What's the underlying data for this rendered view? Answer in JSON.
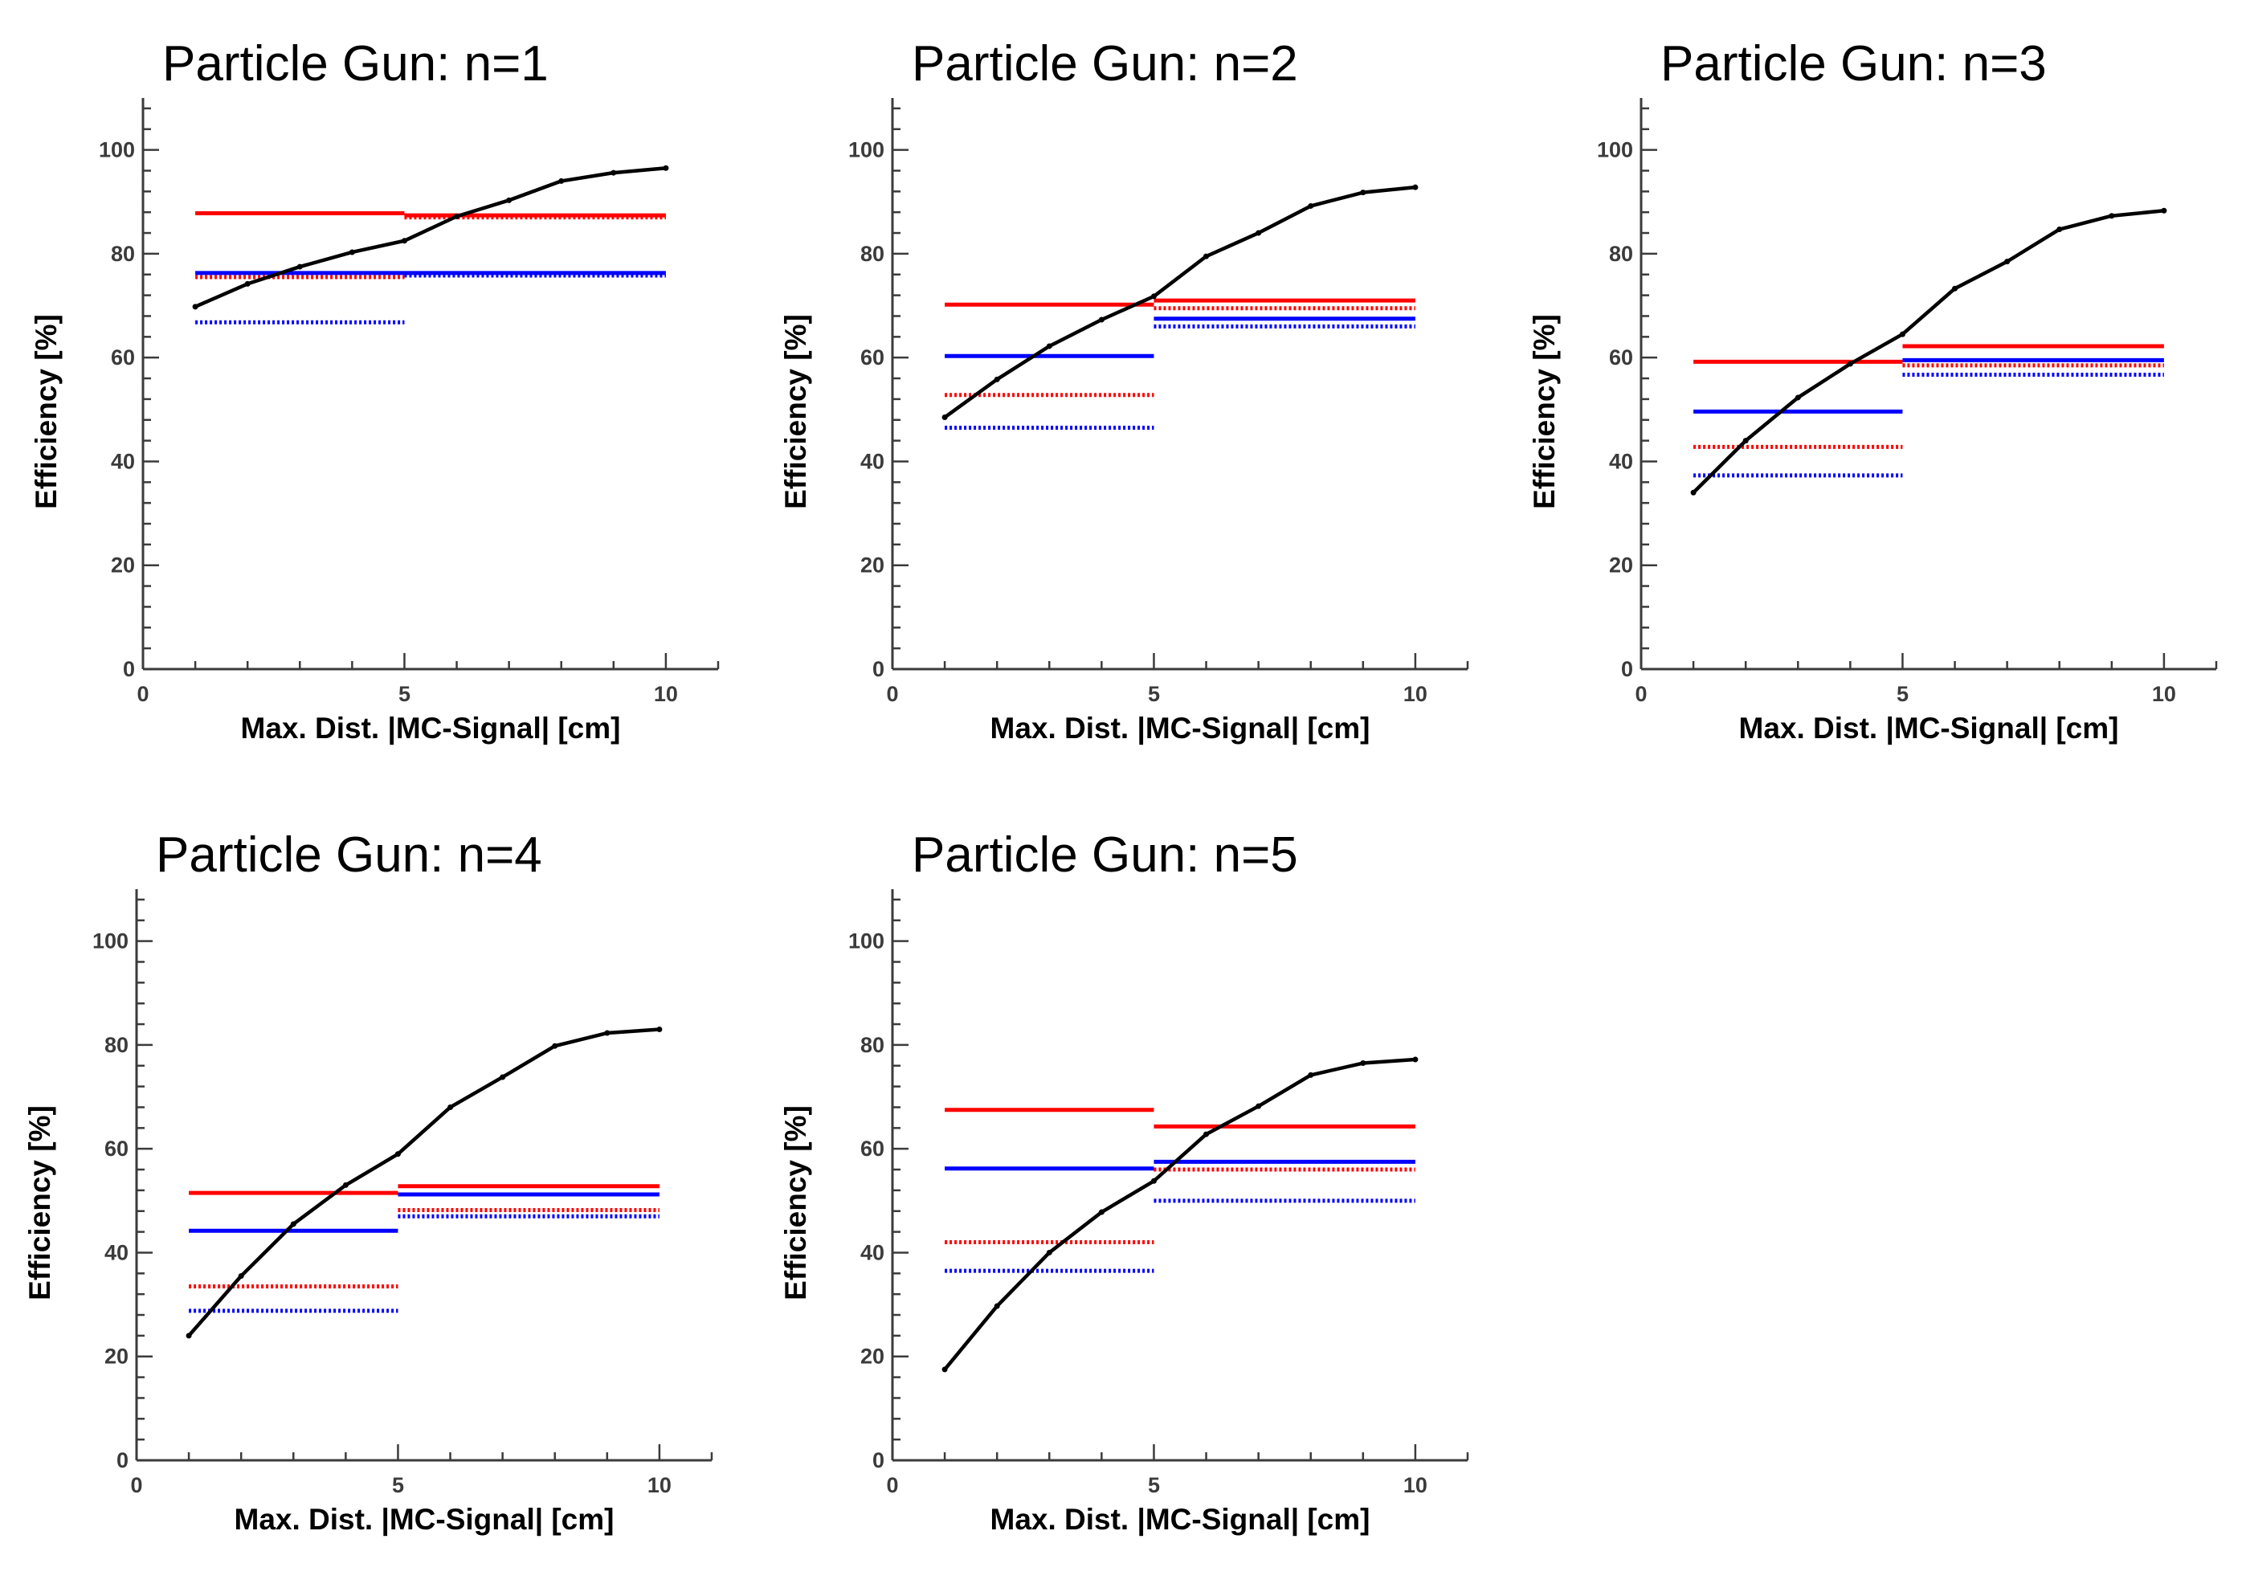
{
  "chart_data": [
    {
      "type": "line",
      "title": "Particle Gun: n=1",
      "xlabel": "Max. Dist. |MC-Signal| [cm]",
      "ylabel": "Efficiency [%]",
      "xlim": [
        0,
        11
      ],
      "ylim": [
        0,
        110
      ],
      "xticks": [
        0,
        5,
        10
      ],
      "yticks": [
        0,
        20,
        40,
        60,
        80,
        100
      ],
      "grid": false,
      "legend": "none",
      "colors": {
        "curve": "#000000",
        "red": "#ff0000",
        "blue": "#0000ff"
      },
      "curve": {
        "x": [
          1,
          2,
          3,
          4,
          5,
          6,
          7,
          8,
          9,
          10
        ],
        "y": [
          69.8,
          74.2,
          77.5,
          80.3,
          82.5,
          87.2,
          90.3,
          94.0,
          95.6,
          96.5
        ]
      },
      "levels": [
        {
          "color": "red",
          "style": "solid",
          "x": [
            1,
            5
          ],
          "y": 87.8
        },
        {
          "color": "red",
          "style": "solid",
          "x": [
            5,
            10
          ],
          "y": 87.4
        },
        {
          "color": "red",
          "style": "dotted",
          "x": [
            1,
            5
          ],
          "y": 75.5
        },
        {
          "color": "red",
          "style": "dotted",
          "x": [
            5,
            10
          ],
          "y": 87.0
        },
        {
          "color": "blue",
          "style": "solid",
          "x": [
            1,
            5
          ],
          "y": 76.3
        },
        {
          "color": "blue",
          "style": "solid",
          "x": [
            5,
            10
          ],
          "y": 76.3
        },
        {
          "color": "blue",
          "style": "dotted",
          "x": [
            1,
            5
          ],
          "y": 66.8
        },
        {
          "color": "blue",
          "style": "dotted",
          "x": [
            5,
            10
          ],
          "y": 75.8
        }
      ]
    },
    {
      "type": "line",
      "title": "Particle Gun: n=2",
      "xlabel": "Max. Dist. |MC-Signal| [cm]",
      "ylabel": "Efficiency [%]",
      "xlim": [
        0,
        11
      ],
      "ylim": [
        0,
        110
      ],
      "xticks": [
        0,
        5,
        10
      ],
      "yticks": [
        0,
        20,
        40,
        60,
        80,
        100
      ],
      "grid": false,
      "legend": "none",
      "colors": {
        "curve": "#000000",
        "red": "#ff0000",
        "blue": "#0000ff"
      },
      "curve": {
        "x": [
          1,
          2,
          3,
          4,
          5,
          6,
          7,
          8,
          9,
          10
        ],
        "y": [
          48.5,
          55.8,
          62.2,
          67.3,
          71.8,
          79.5,
          84.0,
          89.2,
          91.8,
          92.8
        ]
      },
      "levels": [
        {
          "color": "red",
          "style": "solid",
          "x": [
            1,
            5
          ],
          "y": 70.2
        },
        {
          "color": "red",
          "style": "solid",
          "x": [
            5,
            10
          ],
          "y": 71.0
        },
        {
          "color": "red",
          "style": "dotted",
          "x": [
            1,
            5
          ],
          "y": 52.8
        },
        {
          "color": "red",
          "style": "dotted",
          "x": [
            5,
            10
          ],
          "y": 69.5
        },
        {
          "color": "blue",
          "style": "solid",
          "x": [
            1,
            5
          ],
          "y": 60.3
        },
        {
          "color": "blue",
          "style": "solid",
          "x": [
            5,
            10
          ],
          "y": 67.5
        },
        {
          "color": "blue",
          "style": "dotted",
          "x": [
            1,
            5
          ],
          "y": 46.5
        },
        {
          "color": "blue",
          "style": "dotted",
          "x": [
            5,
            10
          ],
          "y": 66.0
        }
      ]
    },
    {
      "type": "line",
      "title": "Particle Gun: n=3",
      "xlabel": "Max. Dist. |MC-Signal| [cm]",
      "ylabel": "Efficiency [%]",
      "xlim": [
        0,
        11
      ],
      "ylim": [
        0,
        110
      ],
      "xticks": [
        0,
        5,
        10
      ],
      "yticks": [
        0,
        20,
        40,
        60,
        80,
        100
      ],
      "grid": false,
      "legend": "none",
      "colors": {
        "curve": "#000000",
        "red": "#ff0000",
        "blue": "#0000ff"
      },
      "curve": {
        "x": [
          1,
          2,
          3,
          4,
          5,
          6,
          7,
          8,
          9,
          10
        ],
        "y": [
          34.0,
          44.0,
          52.3,
          58.8,
          64.5,
          73.3,
          78.5,
          84.7,
          87.3,
          88.3
        ]
      },
      "levels": [
        {
          "color": "red",
          "style": "solid",
          "x": [
            1,
            5
          ],
          "y": 59.2
        },
        {
          "color": "red",
          "style": "solid",
          "x": [
            5,
            10
          ],
          "y": 62.2
        },
        {
          "color": "red",
          "style": "dotted",
          "x": [
            1,
            5
          ],
          "y": 42.8
        },
        {
          "color": "red",
          "style": "dotted",
          "x": [
            5,
            10
          ],
          "y": 58.5
        },
        {
          "color": "blue",
          "style": "solid",
          "x": [
            1,
            5
          ],
          "y": 49.6
        },
        {
          "color": "blue",
          "style": "solid",
          "x": [
            5,
            10
          ],
          "y": 59.5
        },
        {
          "color": "blue",
          "style": "dotted",
          "x": [
            1,
            5
          ],
          "y": 37.3
        },
        {
          "color": "blue",
          "style": "dotted",
          "x": [
            5,
            10
          ],
          "y": 56.7
        }
      ]
    },
    {
      "type": "line",
      "title": "Particle Gun: n=4",
      "xlabel": "Max. Dist. |MC-Signal| [cm]",
      "ylabel": "Efficiency [%]",
      "xlim": [
        0,
        11
      ],
      "ylim": [
        0,
        110
      ],
      "xticks": [
        0,
        5,
        10
      ],
      "yticks": [
        0,
        20,
        40,
        60,
        80,
        100
      ],
      "grid": false,
      "legend": "none",
      "colors": {
        "curve": "#000000",
        "red": "#ff0000",
        "blue": "#0000ff"
      },
      "curve": {
        "x": [
          1,
          2,
          3,
          4,
          5,
          6,
          7,
          8,
          9,
          10
        ],
        "y": [
          24.0,
          35.5,
          45.5,
          53.0,
          59.0,
          68.0,
          73.8,
          79.8,
          82.3,
          83.0
        ]
      },
      "levels": [
        {
          "color": "red",
          "style": "solid",
          "x": [
            1,
            5
          ],
          "y": 51.5
        },
        {
          "color": "red",
          "style": "solid",
          "x": [
            5,
            10
          ],
          "y": 52.8
        },
        {
          "color": "red",
          "style": "dotted",
          "x": [
            1,
            5
          ],
          "y": 33.5
        },
        {
          "color": "red",
          "style": "dotted",
          "x": [
            5,
            10
          ],
          "y": 48.2
        },
        {
          "color": "blue",
          "style": "solid",
          "x": [
            1,
            5
          ],
          "y": 44.2
        },
        {
          "color": "blue",
          "style": "solid",
          "x": [
            5,
            10
          ],
          "y": 51.2
        },
        {
          "color": "blue",
          "style": "dotted",
          "x": [
            1,
            5
          ],
          "y": 28.8
        },
        {
          "color": "blue",
          "style": "dotted",
          "x": [
            5,
            10
          ],
          "y": 47.0
        }
      ]
    },
    {
      "type": "line",
      "title": "Particle Gun: n=5",
      "xlabel": "Max. Dist. |MC-Signal| [cm]",
      "ylabel": "Efficiency [%]",
      "xlim": [
        0,
        11
      ],
      "ylim": [
        0,
        110
      ],
      "xticks": [
        0,
        5,
        10
      ],
      "yticks": [
        0,
        20,
        40,
        60,
        80,
        100
      ],
      "grid": false,
      "legend": "none",
      "colors": {
        "curve": "#000000",
        "red": "#ff0000",
        "blue": "#0000ff"
      },
      "curve": {
        "x": [
          1,
          2,
          3,
          4,
          5,
          6,
          7,
          8,
          9,
          10
        ],
        "y": [
          17.5,
          29.7,
          40.0,
          47.8,
          53.8,
          62.8,
          68.2,
          74.2,
          76.5,
          77.2
        ]
      },
      "levels": [
        {
          "color": "red",
          "style": "solid",
          "x": [
            1,
            5
          ],
          "y": 67.5
        },
        {
          "color": "red",
          "style": "solid",
          "x": [
            5,
            10
          ],
          "y": 64.3
        },
        {
          "color": "red",
          "style": "dotted",
          "x": [
            1,
            5
          ],
          "y": 42.0
        },
        {
          "color": "red",
          "style": "dotted",
          "x": [
            5,
            10
          ],
          "y": 56.0
        },
        {
          "color": "blue",
          "style": "solid",
          "x": [
            1,
            5
          ],
          "y": 56.2
        },
        {
          "color": "blue",
          "style": "solid",
          "x": [
            5,
            10
          ],
          "y": 57.5
        },
        {
          "color": "blue",
          "style": "dotted",
          "x": [
            1,
            5
          ],
          "y": 36.5
        },
        {
          "color": "blue",
          "style": "dotted",
          "x": [
            5,
            10
          ],
          "y": 50.0
        }
      ]
    }
  ]
}
